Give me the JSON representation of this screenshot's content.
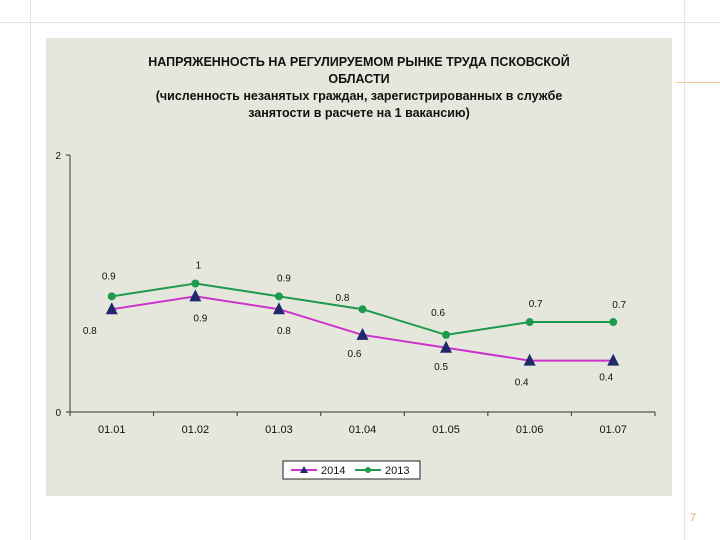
{
  "chart_data": {
    "type": "line",
    "title": "НАПРЯЖЕННОСТЬ НА РЕГУЛИРУЕМОМ РЫНКЕ ТРУДА ПСКОВСКОЙ ОБЛАСТИ",
    "subtitle": "(численность незанятых граждан, зарегистрированных в службе занятости в расчете на 1 вакансию)",
    "title_lines": [
      "НАПРЯЖЕННОСТЬ НА РЕГУЛИРУЕМОМ РЫНКЕ ТРУДА ПСКОВСКОЙ",
      "ОБЛАСТИ",
      "(численность незанятых граждан, зарегистрированных в службе",
      "занятости в расчете на 1 вакансию)"
    ],
    "categories": [
      "01.01",
      "01.02",
      "01.03",
      "01.04",
      "01.05",
      "01.06",
      "01.07"
    ],
    "y_ticks": [
      "0",
      "2"
    ],
    "ylim": [
      0,
      2
    ],
    "grid": false,
    "legend_position": "bottom",
    "series": [
      {
        "name": "2014",
        "values": [
          0.8,
          0.9,
          0.8,
          0.6,
          0.5,
          0.4,
          0.4
        ],
        "labels": [
          "0.8",
          "0.9",
          "0.8",
          "0.6",
          "0.5",
          "0.4",
          "0.4"
        ],
        "color": "#cc33cc",
        "marker": "triangle",
        "marker_color": "#1f2a6b"
      },
      {
        "name": "2013",
        "values": [
          0.9,
          1.0,
          0.9,
          0.8,
          0.6,
          0.7,
          0.7
        ],
        "labels": [
          "0.9",
          "1",
          "0.9",
          "0.8",
          "0.6",
          "0.7",
          "0.7"
        ],
        "color": "#1e9a4c",
        "marker": "circle",
        "marker_color": "#1e9a4c"
      }
    ]
  },
  "page_number": "7"
}
